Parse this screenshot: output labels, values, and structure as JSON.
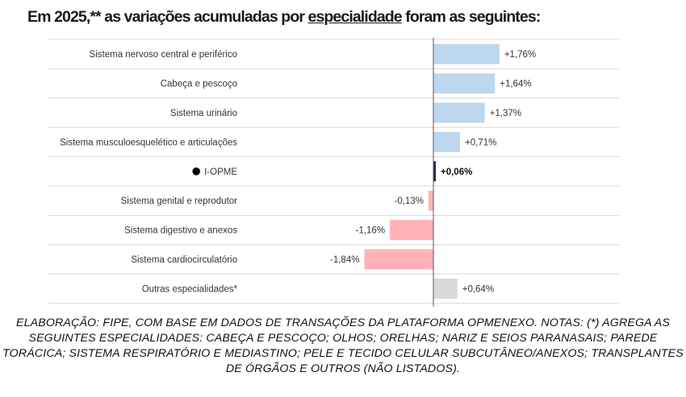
{
  "title": {
    "part1": "Em 2025,** as variações acumuladas por ",
    "underlined": "especialidade",
    "part2": " foram as seguintes:"
  },
  "chart_data": {
    "type": "bar",
    "orientation": "horizontal",
    "categories": [
      "Sistema nervoso central e periférico",
      "Cabeça e pescoço",
      "Sistema urinário",
      "Sistema musculoesquelético e articulações",
      "I-OPME",
      "Sistema genital e reprodutor",
      "Sistema digestivo e anexos",
      "Sistema cardiocirculatório",
      "Outras especialidades*"
    ],
    "values": [
      1.76,
      1.64,
      1.37,
      0.71,
      0.06,
      -0.13,
      -1.16,
      -1.84,
      0.64
    ],
    "value_labels": [
      "+1,76%",
      "+1,64%",
      "+1,37%",
      "+0,71%",
      "+0,06%",
      "-0,13%",
      "-1,16%",
      "-1,84%",
      "+0,64%"
    ],
    "highlight_category": "I-OPME",
    "colors": {
      "positive": "#bdd7ee",
      "negative": "#ffb3b8",
      "highlight": "#1f2d44",
      "other": "#d9d9d9",
      "grid": "#d0d0d0",
      "axis": "#555555"
    },
    "xlim": [
      -2.0,
      2.0
    ],
    "grid": true,
    "legend": "none"
  },
  "footnote": "ELABORAÇÃO: FIPE, COM BASE EM DADOS DE TRANSAÇÕES DA PLATAFORMA OPMENEXO. NOTAS: (*) AGREGA AS SEGUINTES ESPECIALIDADES: CABEÇA E PESCOÇO; OLHOS; ORELHAS; NARIZ E SEIOS PARANASAIS; PAREDE TORÁCICA; SISTEMA RESPIRATÓRIO E MEDIASTINO; PELE E TECIDO CELULAR SUBCUTÂNEO/ANEXOS; TRANSPLANTES DE ÓRGÃOS E OUTROS (NÃO LISTADOS)."
}
